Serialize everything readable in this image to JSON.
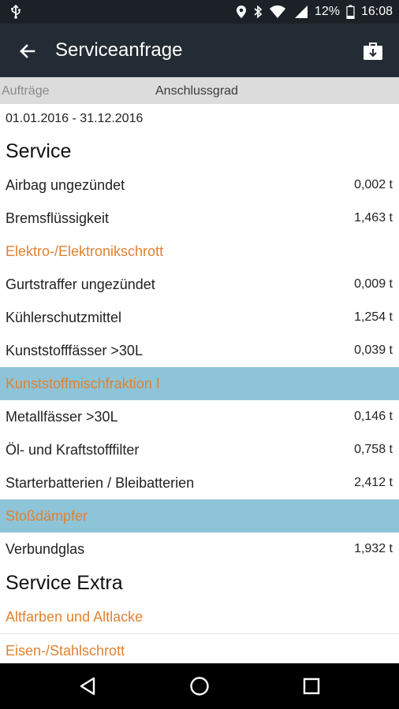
{
  "status_bar": {
    "battery": "12%",
    "time": "16:08",
    "icons": [
      "usb-icon",
      "location-icon",
      "bluetooth-icon",
      "wifi-icon",
      "signal-icon",
      "battery-icon"
    ]
  },
  "app_bar": {
    "title": "Serviceanfrage",
    "back_icon": "arrow-back-icon",
    "action_icon": "briefcase-icon"
  },
  "tabs": [
    {
      "label": "Aufträge"
    },
    {
      "label": "Anschlussgrad"
    }
  ],
  "date_range": "01.01.2016 - 31.12.2016",
  "sections": [
    {
      "title": "Service",
      "items": [
        {
          "label": "Airbag ungezündet",
          "value": "0,002 t",
          "style": "normal"
        },
        {
          "label": "Bremsflüssigkeit",
          "value": "1,463 t",
          "style": "normal"
        },
        {
          "label": "Elektro-/Elektronikschrott",
          "value": "",
          "style": "orange"
        },
        {
          "label": "Gurtstraffer ungezündet",
          "value": "0,009 t",
          "style": "normal"
        },
        {
          "label": "Kühlerschutzmittel",
          "value": "1,254 t",
          "style": "normal"
        },
        {
          "label": "Kunststofffässer >30L",
          "value": "0,039 t",
          "style": "normal"
        },
        {
          "label": "Kunststoffmischfraktion I",
          "value": "",
          "style": "orange-highlight"
        },
        {
          "label": "Metallfässer >30L",
          "value": "0,146 t",
          "style": "normal"
        },
        {
          "label": "Öl- und Kraftstofffilter",
          "value": "0,758 t",
          "style": "normal"
        },
        {
          "label": "Starterbatterien / Bleibatterien",
          "value": "2,412 t",
          "style": "normal"
        },
        {
          "label": "Stoßdämpfer",
          "value": "",
          "style": "orange-highlight"
        },
        {
          "label": "Verbundglas",
          "value": "1,932 t",
          "style": "normal"
        }
      ]
    },
    {
      "title": "Service Extra",
      "items": [
        {
          "label": "Altfarben und Altlacke",
          "value": "",
          "style": "orange"
        },
        {
          "label": "Eisen-/Stahlschrott",
          "value": "",
          "style": "orange"
        }
      ]
    }
  ],
  "colors": {
    "app_bar": "#232b34",
    "status_bar": "#1b2126",
    "accent_orange": "#e08230",
    "highlight_blue": "#8ec4d8",
    "tabs_bg": "#dcdcdc"
  },
  "nav_bar": {
    "icons": [
      "back-triangle-icon",
      "home-circle-icon",
      "recents-square-icon"
    ]
  }
}
